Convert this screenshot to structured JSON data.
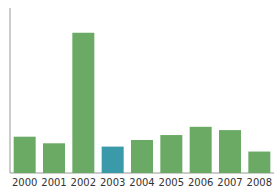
{
  "chart_data": {
    "type": "bar",
    "categories": [
      "2000",
      "2001",
      "2002",
      "2003",
      "2004",
      "2005",
      "2006",
      "2007",
      "2008"
    ],
    "values": [
      22,
      18,
      85,
      16,
      20,
      23,
      28,
      26,
      13
    ],
    "colors": [
      "#6aaa64",
      "#6aaa64",
      "#6aaa64",
      "#3a9aaa",
      "#6aaa64",
      "#6aaa64",
      "#6aaa64",
      "#6aaa64",
      "#6aaa64"
    ],
    "ylim": [
      0,
      100
    ],
    "grid": false,
    "tick_labels": "x"
  }
}
